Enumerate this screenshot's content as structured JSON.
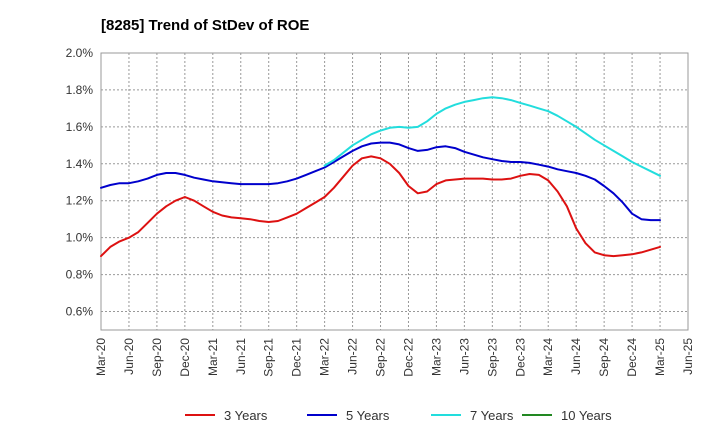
{
  "chart_data": {
    "type": "line",
    "title": "[8285]  Trend of StDev of ROE",
    "xlabel": "",
    "ylabel": "",
    "x_tick_labels": [
      "Mar-20",
      "Jun-20",
      "Sep-20",
      "Dec-20",
      "Mar-21",
      "Jun-21",
      "Sep-21",
      "Dec-21",
      "Mar-22",
      "Jun-22",
      "Sep-22",
      "Dec-22",
      "Mar-23",
      "Jun-23",
      "Sep-23",
      "Dec-23",
      "Mar-24",
      "Jun-24",
      "Sep-24",
      "Dec-24",
      "Mar-25",
      "Jun-25"
    ],
    "y_tick_labels": [
      "0.6%",
      "0.8%",
      "1.0%",
      "1.2%",
      "1.4%",
      "1.6%",
      "1.8%",
      "2.0%"
    ],
    "y_ticks": [
      0.6,
      0.8,
      1.0,
      1.2,
      1.4,
      1.6,
      1.8,
      2.0
    ],
    "ylim": [
      0.5,
      2.0
    ],
    "grid": true,
    "legend_position": "bottom",
    "series": [
      {
        "name": "3 Years",
        "color": "#dd1111",
        "x": [
          "Mar-20",
          "Apr-20",
          "May-20",
          "Jun-20",
          "Jul-20",
          "Aug-20",
          "Sep-20",
          "Oct-20",
          "Nov-20",
          "Dec-20",
          "Jan-21",
          "Feb-21",
          "Mar-21",
          "Apr-21",
          "May-21",
          "Jun-21",
          "Jul-21",
          "Aug-21",
          "Sep-21",
          "Oct-21",
          "Nov-21",
          "Dec-21",
          "Jan-22",
          "Feb-22",
          "Mar-22",
          "Apr-22",
          "May-22",
          "Jun-22",
          "Jul-22",
          "Aug-22",
          "Sep-22",
          "Oct-22",
          "Nov-22",
          "Dec-22",
          "Jan-23",
          "Feb-23",
          "Mar-23",
          "Apr-23",
          "May-23",
          "Jun-23",
          "Jul-23",
          "Aug-23",
          "Sep-23",
          "Oct-23",
          "Nov-23",
          "Dec-23",
          "Jan-24",
          "Feb-24",
          "Mar-24",
          "Apr-24",
          "May-24",
          "Jun-24",
          "Jul-24",
          "Aug-24",
          "Sep-24",
          "Oct-24",
          "Nov-24",
          "Dec-24",
          "Jan-25",
          "Feb-25",
          "Mar-25"
        ],
        "values": [
          0.9,
          0.95,
          0.98,
          1.0,
          1.03,
          1.08,
          1.13,
          1.17,
          1.2,
          1.22,
          1.2,
          1.17,
          1.14,
          1.12,
          1.11,
          1.105,
          1.1,
          1.09,
          1.085,
          1.09,
          1.11,
          1.13,
          1.16,
          1.19,
          1.22,
          1.27,
          1.33,
          1.39,
          1.43,
          1.44,
          1.43,
          1.4,
          1.35,
          1.28,
          1.24,
          1.25,
          1.29,
          1.31,
          1.315,
          1.32,
          1.32,
          1.32,
          1.315,
          1.315,
          1.32,
          1.335,
          1.345,
          1.34,
          1.31,
          1.25,
          1.17,
          1.05,
          0.97,
          0.92,
          0.905,
          0.9,
          0.905,
          0.91,
          0.92,
          0.935,
          0.95
        ]
      },
      {
        "name": "5 Years",
        "color": "#0000cc",
        "x": [
          "Mar-20",
          "Apr-20",
          "May-20",
          "Jun-20",
          "Jul-20",
          "Aug-20",
          "Sep-20",
          "Oct-20",
          "Nov-20",
          "Dec-20",
          "Jan-21",
          "Feb-21",
          "Mar-21",
          "Apr-21",
          "May-21",
          "Jun-21",
          "Jul-21",
          "Aug-21",
          "Sep-21",
          "Oct-21",
          "Nov-21",
          "Dec-21",
          "Jan-22",
          "Feb-22",
          "Mar-22",
          "Apr-22",
          "May-22",
          "Jun-22",
          "Jul-22",
          "Aug-22",
          "Sep-22",
          "Oct-22",
          "Nov-22",
          "Dec-22",
          "Jan-23",
          "Feb-23",
          "Mar-23",
          "Apr-23",
          "May-23",
          "Jun-23",
          "Jul-23",
          "Aug-23",
          "Sep-23",
          "Oct-23",
          "Nov-23",
          "Dec-23",
          "Jan-24",
          "Feb-24",
          "Mar-24",
          "Apr-24",
          "May-24",
          "Jun-24",
          "Jul-24",
          "Aug-24",
          "Sep-24",
          "Oct-24",
          "Nov-24",
          "Dec-24",
          "Jan-25",
          "Feb-25",
          "Mar-25"
        ],
        "values": [
          1.27,
          1.285,
          1.295,
          1.295,
          1.305,
          1.32,
          1.34,
          1.35,
          1.35,
          1.34,
          1.325,
          1.315,
          1.305,
          1.3,
          1.295,
          1.29,
          1.29,
          1.29,
          1.29,
          1.295,
          1.305,
          1.32,
          1.34,
          1.36,
          1.38,
          1.41,
          1.44,
          1.47,
          1.495,
          1.51,
          1.515,
          1.515,
          1.505,
          1.485,
          1.47,
          1.475,
          1.49,
          1.495,
          1.485,
          1.465,
          1.45,
          1.435,
          1.425,
          1.415,
          1.41,
          1.41,
          1.405,
          1.395,
          1.385,
          1.37,
          1.36,
          1.35,
          1.335,
          1.315,
          1.28,
          1.24,
          1.19,
          1.13,
          1.1,
          1.095,
          1.095
        ]
      },
      {
        "name": "7 Years",
        "color": "#22dddd",
        "x": [
          "Mar-22",
          "Apr-22",
          "May-22",
          "Jun-22",
          "Jul-22",
          "Aug-22",
          "Sep-22",
          "Oct-22",
          "Nov-22",
          "Dec-22",
          "Jan-23",
          "Feb-23",
          "Mar-23",
          "Apr-23",
          "May-23",
          "Jun-23",
          "Jul-23",
          "Aug-23",
          "Sep-23",
          "Oct-23",
          "Nov-23",
          "Dec-23",
          "Jan-24",
          "Feb-24",
          "Mar-24",
          "Apr-24",
          "May-24",
          "Jun-24",
          "Jul-24",
          "Aug-24",
          "Sep-24",
          "Oct-24",
          "Nov-24",
          "Dec-24",
          "Jan-25",
          "Feb-25",
          "Mar-25"
        ],
        "values": [
          1.39,
          1.42,
          1.46,
          1.5,
          1.53,
          1.56,
          1.58,
          1.595,
          1.6,
          1.595,
          1.6,
          1.63,
          1.67,
          1.7,
          1.72,
          1.735,
          1.745,
          1.755,
          1.76,
          1.755,
          1.745,
          1.73,
          1.715,
          1.7,
          1.685,
          1.66,
          1.63,
          1.6,
          1.565,
          1.53,
          1.5,
          1.47,
          1.44,
          1.41,
          1.385,
          1.36,
          1.335
        ]
      },
      {
        "name": "10 Years",
        "color": "#228822",
        "x": [],
        "values": []
      }
    ]
  }
}
